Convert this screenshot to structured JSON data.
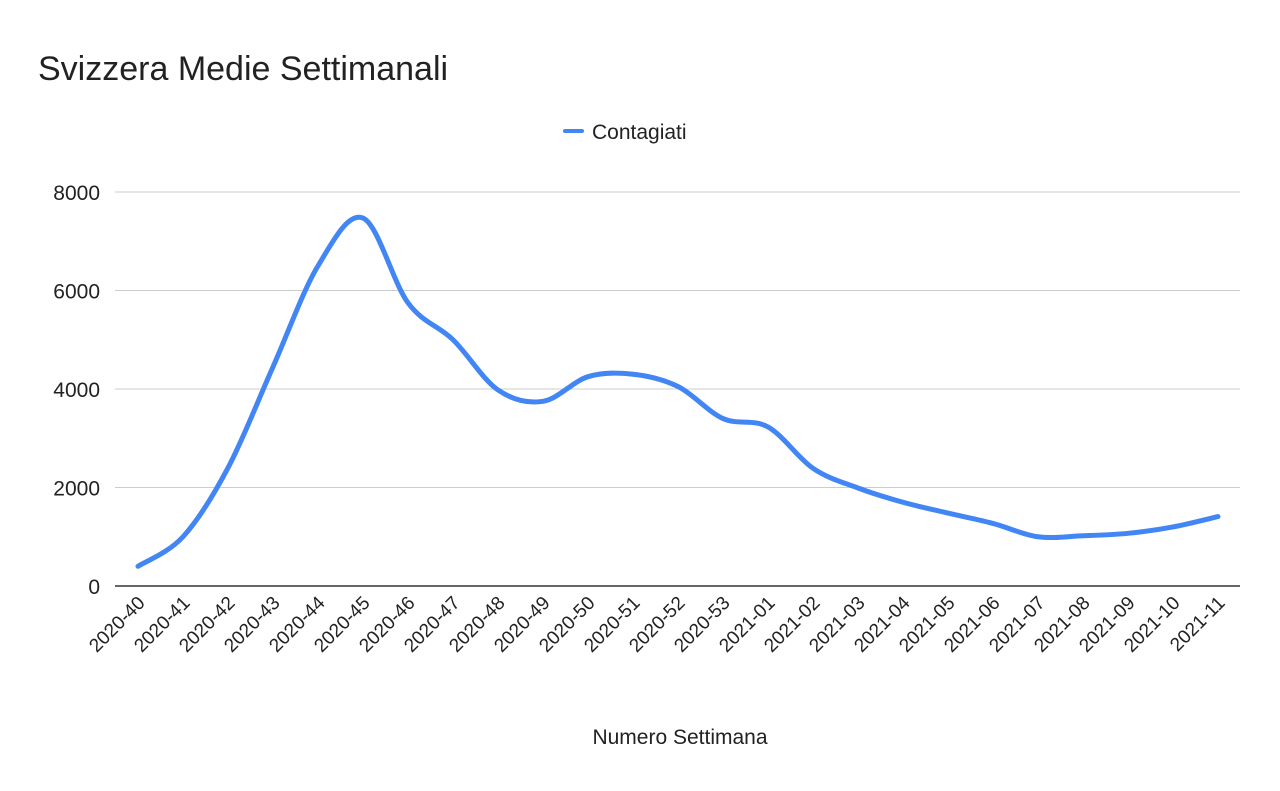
{
  "chart_data": {
    "type": "line",
    "title": "Svizzera Medie Settimanali",
    "xlabel": "Numero Settimana",
    "ylabel": "",
    "ylim": [
      0,
      8000
    ],
    "yticks": [
      "0",
      "2000",
      "4000",
      "6000",
      "8000"
    ],
    "grid": true,
    "legend": "top",
    "smooth": true,
    "categories": [
      "2020-40",
      "2020-41",
      "2020-42",
      "2020-43",
      "2020-44",
      "2020-45",
      "2020-46",
      "2020-47",
      "2020-48",
      "2020-49",
      "2020-50",
      "2020-51",
      "2020-52",
      "2020-53",
      "2021-01",
      "2021-02",
      "2021-03",
      "2021-04",
      "2021-05",
      "2021-06",
      "2021-07",
      "2021-08",
      "2021-09",
      "2021-10",
      "2021-11"
    ],
    "series": [
      {
        "name": "Contagiati",
        "color": "#4285f4",
        "values": [
          400,
          1000,
          2400,
          4450,
          6500,
          7470,
          5750,
          5000,
          3980,
          3750,
          4250,
          4300,
          4050,
          3400,
          3230,
          2390,
          1990,
          1700,
          1480,
          1270,
          1000,
          1020,
          1070,
          1200,
          1410
        ]
      }
    ]
  }
}
